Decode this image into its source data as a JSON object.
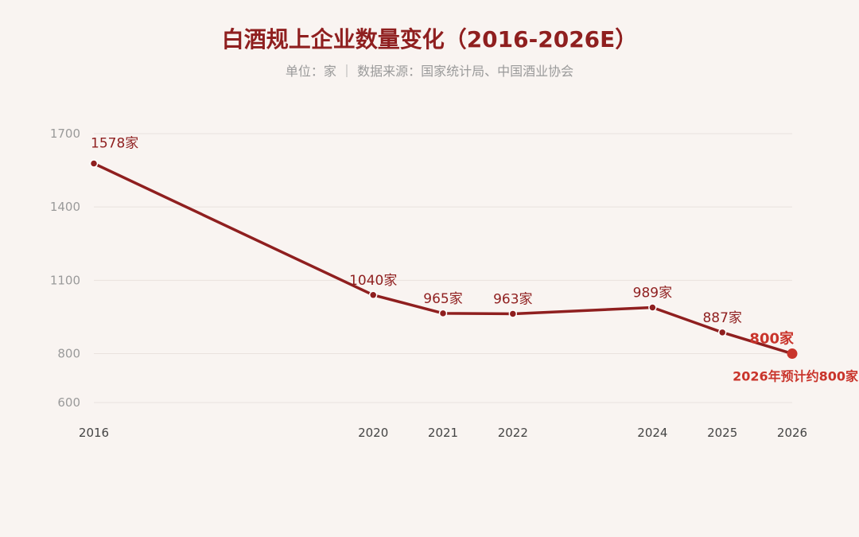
{
  "chart_data": {
    "type": "line",
    "title": "白酒规上企业数量变化（2016-2026E）",
    "subtitle": "单位：家 ｜ 数据来源：国家统计局、中国酒业协会",
    "unit": "家",
    "x": [
      2016,
      2020,
      2021,
      2022,
      2024,
      2025,
      2026
    ],
    "values": [
      1578,
      1040,
      965,
      963,
      989,
      887,
      800
    ],
    "data_labels": [
      "1578家",
      "1040家",
      "965家",
      "963家",
      "989家",
      "887家",
      "800家"
    ],
    "xlim": [
      2016,
      2026
    ],
    "ylim": [
      600,
      1700
    ],
    "y_ticks": [
      600,
      800,
      1100,
      1400,
      1700
    ],
    "grid": true,
    "legend": "none",
    "annotation": "2026年预计约800家",
    "colors": {
      "line": "#8f1f1f",
      "highlight": "#c9342b",
      "grid": "#e9e2de"
    }
  }
}
